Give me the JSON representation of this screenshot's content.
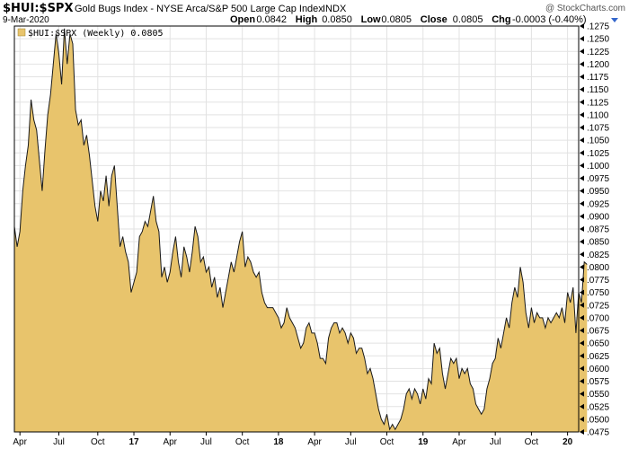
{
  "header": {
    "symbol": "$HUI:$SPX",
    "description": "Gold Bugs Index - NYSE Arca/S&P 500 Large Cap Index",
    "exchange": "INDX",
    "date": "9-Mar-2020",
    "watermark": "@ StockCharts.com",
    "quote": [
      {
        "label": "Open",
        "value": "0.0842"
      },
      {
        "label": "High",
        "value": "0.0850"
      },
      {
        "label": "Low",
        "value": "0.0805"
      },
      {
        "label": "Close",
        "value": "0.0805"
      },
      {
        "label": "Chg",
        "value": "-0.0003 (-0.40%)"
      }
    ]
  },
  "legend": {
    "text": "$HUI:$SPX (Weekly) 0.0805"
  },
  "colors": {
    "fill": "#e8c46c",
    "line": "#1a1a1a",
    "grid": "#e2e2e2",
    "accent": "#3366cc"
  },
  "chart_data": {
    "type": "area",
    "title": "$HUI:$SPX (Weekly)",
    "y_axis_position": "right",
    "grid": true,
    "legend_position": "top-left",
    "ylim": [
      0.0475,
      0.1275
    ],
    "ytick_step": 0.0025,
    "xlim": [
      0,
      203
    ],
    "x_ticks": [
      {
        "label": "Apr",
        "x": 2,
        "year": false
      },
      {
        "label": "Jul",
        "x": 16,
        "year": false
      },
      {
        "label": "Oct",
        "x": 30,
        "year": false
      },
      {
        "label": "17",
        "x": 43,
        "year": true
      },
      {
        "label": "Apr",
        "x": 56,
        "year": false
      },
      {
        "label": "Jul",
        "x": 69,
        "year": false
      },
      {
        "label": "Oct",
        "x": 82,
        "year": false
      },
      {
        "label": "18",
        "x": 95,
        "year": true
      },
      {
        "label": "Apr",
        "x": 108,
        "year": false
      },
      {
        "label": "Jul",
        "x": 121,
        "year": false
      },
      {
        "label": "Oct",
        "x": 134,
        "year": false
      },
      {
        "label": "19",
        "x": 147,
        "year": true
      },
      {
        "label": "Apr",
        "x": 160,
        "year": false
      },
      {
        "label": "Jul",
        "x": 173,
        "year": false
      },
      {
        "label": "Oct",
        "x": 186,
        "year": false
      },
      {
        "label": "20",
        "x": 199,
        "year": true
      }
    ],
    "series": [
      {
        "values": [
          0.088,
          0.084,
          0.087,
          0.095,
          0.1,
          0.104,
          0.113,
          0.109,
          0.107,
          0.101,
          0.095,
          0.103,
          0.11,
          0.114,
          0.12,
          0.126,
          0.122,
          0.116,
          0.127,
          0.12,
          0.126,
          0.124,
          0.111,
          0.108,
          0.109,
          0.104,
          0.106,
          0.102,
          0.097,
          0.092,
          0.089,
          0.095,
          0.093,
          0.098,
          0.092,
          0.098,
          0.1,
          0.092,
          0.084,
          0.086,
          0.083,
          0.081,
          0.075,
          0.077,
          0.079,
          0.086,
          0.087,
          0.089,
          0.088,
          0.091,
          0.094,
          0.089,
          0.087,
          0.078,
          0.08,
          0.077,
          0.079,
          0.083,
          0.086,
          0.081,
          0.078,
          0.084,
          0.082,
          0.079,
          0.083,
          0.088,
          0.086,
          0.081,
          0.082,
          0.079,
          0.08,
          0.076,
          0.078,
          0.074,
          0.076,
          0.072,
          0.075,
          0.078,
          0.081,
          0.079,
          0.082,
          0.085,
          0.087,
          0.08,
          0.082,
          0.081,
          0.079,
          0.078,
          0.079,
          0.075,
          0.073,
          0.072,
          0.072,
          0.072,
          0.071,
          0.07,
          0.068,
          0.069,
          0.072,
          0.07,
          0.069,
          0.068,
          0.066,
          0.064,
          0.065,
          0.068,
          0.069,
          0.067,
          0.067,
          0.065,
          0.062,
          0.062,
          0.061,
          0.066,
          0.068,
          0.069,
          0.069,
          0.067,
          0.068,
          0.067,
          0.065,
          0.067,
          0.066,
          0.063,
          0.064,
          0.064,
          0.062,
          0.059,
          0.06,
          0.058,
          0.055,
          0.052,
          0.05,
          0.049,
          0.051,
          0.048,
          0.049,
          0.048,
          0.049,
          0.05,
          0.052,
          0.055,
          0.056,
          0.054,
          0.056,
          0.055,
          0.053,
          0.056,
          0.054,
          0.058,
          0.057,
          0.065,
          0.063,
          0.064,
          0.059,
          0.056,
          0.059,
          0.062,
          0.061,
          0.062,
          0.058,
          0.06,
          0.059,
          0.06,
          0.057,
          0.056,
          0.053,
          0.052,
          0.051,
          0.052,
          0.056,
          0.058,
          0.061,
          0.062,
          0.066,
          0.064,
          0.067,
          0.07,
          0.068,
          0.073,
          0.076,
          0.074,
          0.08,
          0.077,
          0.071,
          0.068,
          0.072,
          0.069,
          0.071,
          0.07,
          0.07,
          0.068,
          0.07,
          0.069,
          0.07,
          0.071,
          0.07,
          0.072,
          0.069,
          0.075,
          0.073,
          0.076,
          0.067,
          0.075,
          0.073,
          0.081,
          0.0805
        ]
      }
    ]
  }
}
